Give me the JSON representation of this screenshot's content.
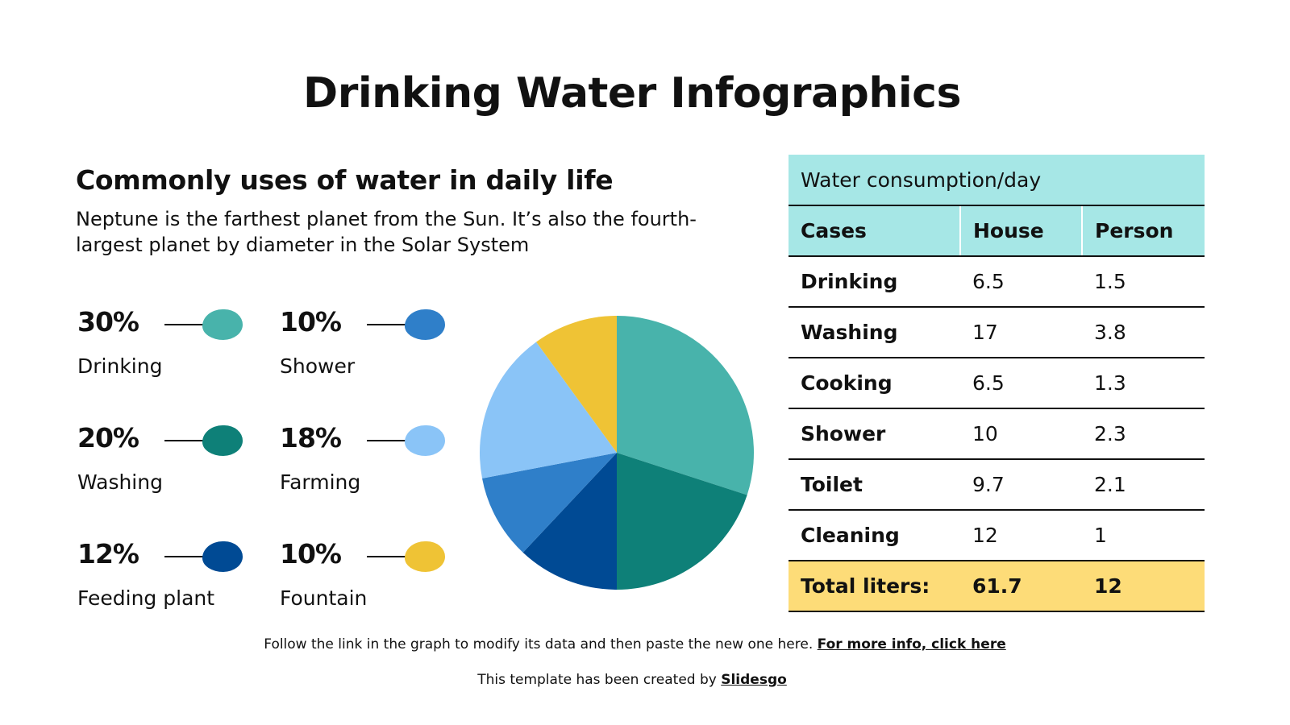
{
  "title": "Drinking Water Infographics",
  "subtitle": "Commonly uses of water in daily life",
  "description": "Neptune is the farthest planet from the Sun. It’s also the fourth-largest planet by diameter in the Solar System",
  "chart_data": {
    "type": "pie",
    "start": "top, clockwise",
    "slices": [
      {
        "label": "Drinking",
        "value": 30,
        "display": "30%",
        "color": "#48b3ab"
      },
      {
        "label": "Washing",
        "value": 20,
        "display": "20%",
        "color": "#0e8078"
      },
      {
        "label": "Feeding plant",
        "value": 12,
        "display": "12%",
        "color": "#004a94"
      },
      {
        "label": "Shower",
        "value": 10,
        "display": "10%",
        "color": "#2f7fc9"
      },
      {
        "label": "Farming",
        "value": 18,
        "display": "18%",
        "color": "#8ac4f7"
      },
      {
        "label": "Fountain",
        "value": 10,
        "display": "10%",
        "color": "#efc335"
      }
    ]
  },
  "table": {
    "caption": "Water consumption/day",
    "headers": [
      "Cases",
      "House",
      "Person"
    ],
    "rows": [
      [
        "Drinking",
        "6.5",
        "1.5"
      ],
      [
        "Washing",
        "17",
        "3.8"
      ],
      [
        "Cooking",
        "6.5",
        "1.3"
      ],
      [
        "Shower",
        "10",
        "2.3"
      ],
      [
        "Toilet",
        "9.7",
        "2.1"
      ],
      [
        "Cleaning",
        "12",
        "1"
      ]
    ],
    "total": [
      "Total liters:",
      "61.7",
      "12"
    ],
    "header_color": "#a6e7e6",
    "total_color": "#fddc78"
  },
  "footer": {
    "note": "Follow the link in the graph to modify its data and then paste the new one here.",
    "note_link": "For more info, click here",
    "credit": "This template has been created by",
    "credit_link": "Slidesgo"
  }
}
